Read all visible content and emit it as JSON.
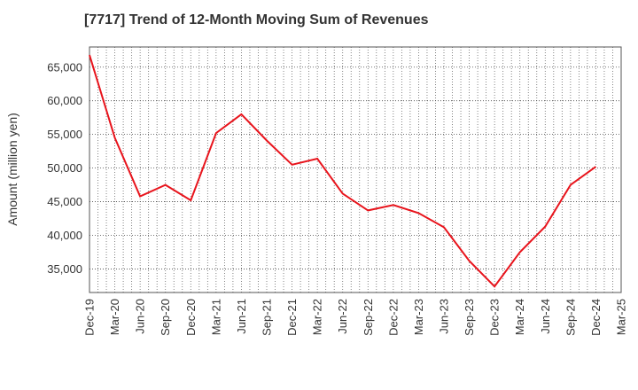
{
  "chart_data": {
    "type": "line",
    "title": "[7717]  Trend of 12-Month Moving Sum of Revenues",
    "ylabel": "Amount (million yen)",
    "xlabel": "",
    "x_ticks": [
      "Dec-19",
      "Mar-20",
      "Jun-20",
      "Sep-20",
      "Dec-20",
      "Mar-21",
      "Jun-21",
      "Sep-21",
      "Dec-21",
      "Mar-22",
      "Jun-22",
      "Sep-22",
      "Dec-22",
      "Mar-23",
      "Jun-23",
      "Sep-23",
      "Dec-23",
      "Mar-24",
      "Jun-24",
      "Sep-24",
      "Dec-24",
      "Mar-25"
    ],
    "y_ticks": [
      35000,
      40000,
      45000,
      50000,
      55000,
      60000,
      65000
    ],
    "y_tick_labels": [
      "35,000",
      "40,000",
      "45,000",
      "50,000",
      "55,000",
      "60,000",
      "65,000"
    ],
    "ylim": [
      31500,
      68000
    ],
    "grid": true,
    "series": [
      {
        "color": "#e8141c",
        "x": [
          "Dec-19",
          "Mar-20",
          "Jun-20",
          "Sep-20",
          "Dec-20",
          "Mar-21",
          "Jun-21",
          "Sep-21",
          "Dec-21",
          "Mar-22",
          "Jun-22",
          "Sep-22",
          "Dec-22",
          "Mar-23",
          "Jun-23",
          "Sep-23",
          "Dec-23",
          "Mar-24",
          "Jun-24",
          "Sep-24",
          "Dec-24"
        ],
        "values": [
          66800,
          54500,
          45800,
          47500,
          45200,
          55200,
          58000,
          54100,
          50500,
          51400,
          46200,
          43700,
          44500,
          43300,
          41200,
          36200,
          32400,
          37500,
          41300,
          47500,
          50200
        ]
      }
    ]
  }
}
